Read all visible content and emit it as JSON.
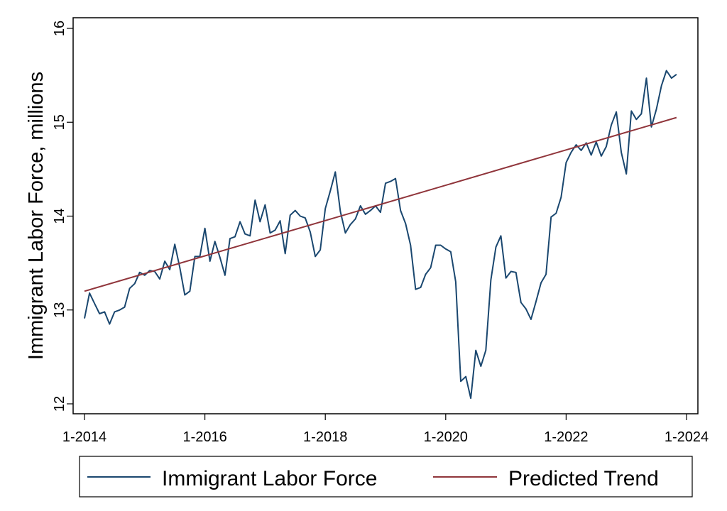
{
  "chart_data": {
    "type": "line",
    "title": "",
    "xlabel": "",
    "ylabel": "Immigrant Labor Force, millions",
    "ylim": [
      12,
      16
    ],
    "yticks": [
      "12",
      "13",
      "14",
      "15",
      "16"
    ],
    "xticks": [
      {
        "label": "1-2014",
        "date": "2014-01"
      },
      {
        "label": "1-2016",
        "date": "2016-01"
      },
      {
        "label": "1-2018",
        "date": "2018-01"
      },
      {
        "label": "1-2020",
        "date": "2020-01"
      },
      {
        "label": "1-2022",
        "date": "2022-01"
      },
      {
        "label": "1-2024",
        "date": "2024-01"
      }
    ],
    "grid": false,
    "legend_position": "bottom",
    "x": [
      "2014-01",
      "2014-02",
      "2014-03",
      "2014-04",
      "2014-05",
      "2014-06",
      "2014-07",
      "2014-08",
      "2014-09",
      "2014-10",
      "2014-11",
      "2014-12",
      "2015-01",
      "2015-02",
      "2015-03",
      "2015-04",
      "2015-05",
      "2015-06",
      "2015-07",
      "2015-08",
      "2015-09",
      "2015-10",
      "2015-11",
      "2015-12",
      "2016-01",
      "2016-02",
      "2016-03",
      "2016-04",
      "2016-05",
      "2016-06",
      "2016-07",
      "2016-08",
      "2016-09",
      "2016-10",
      "2016-11",
      "2016-12",
      "2017-01",
      "2017-02",
      "2017-03",
      "2017-04",
      "2017-05",
      "2017-06",
      "2017-07",
      "2017-08",
      "2017-09",
      "2017-10",
      "2017-11",
      "2017-12",
      "2018-01",
      "2018-02",
      "2018-03",
      "2018-04",
      "2018-05",
      "2018-06",
      "2018-07",
      "2018-08",
      "2018-09",
      "2018-10",
      "2018-11",
      "2018-12",
      "2019-01",
      "2019-02",
      "2019-03",
      "2019-04",
      "2019-05",
      "2019-06",
      "2019-07",
      "2019-08",
      "2019-09",
      "2019-10",
      "2019-11",
      "2019-12",
      "2020-01",
      "2020-02",
      "2020-03",
      "2020-04",
      "2020-05",
      "2020-06",
      "2020-07",
      "2020-08",
      "2020-09",
      "2020-10",
      "2020-11",
      "2020-12",
      "2021-01",
      "2021-02",
      "2021-03",
      "2021-04",
      "2021-05",
      "2021-06",
      "2021-07",
      "2021-08",
      "2021-09",
      "2021-10",
      "2021-11",
      "2021-12",
      "2022-01",
      "2022-02",
      "2022-03",
      "2022-04",
      "2022-05",
      "2022-06",
      "2022-07",
      "2022-08",
      "2022-09",
      "2022-10",
      "2022-11",
      "2022-12",
      "2023-01",
      "2023-02",
      "2023-03",
      "2023-04",
      "2023-05",
      "2023-06",
      "2023-07",
      "2023-08",
      "2023-09",
      "2023-10",
      "2023-11"
    ],
    "series": [
      {
        "name": "Immigrant Labor Force",
        "color": "#1a476f",
        "values": [
          12.91,
          13.18,
          13.07,
          12.96,
          12.98,
          12.85,
          12.98,
          13.0,
          13.03,
          13.23,
          13.28,
          13.4,
          13.37,
          13.42,
          13.41,
          13.33,
          13.52,
          13.43,
          13.7,
          13.45,
          13.16,
          13.2,
          13.57,
          13.57,
          13.87,
          13.52,
          13.73,
          13.56,
          13.37,
          13.76,
          13.78,
          13.94,
          13.81,
          13.79,
          14.17,
          13.94,
          14.12,
          13.82,
          13.85,
          13.95,
          13.6,
          14.01,
          14.06,
          14.0,
          13.98,
          13.83,
          13.57,
          13.64,
          14.08,
          14.27,
          14.47,
          14.05,
          13.82,
          13.91,
          13.97,
          14.11,
          14.02,
          14.06,
          14.11,
          14.04,
          14.35,
          14.37,
          14.4,
          14.06,
          13.92,
          13.69,
          13.22,
          13.24,
          13.38,
          13.45,
          13.69,
          13.69,
          13.65,
          13.62,
          13.3,
          12.24,
          12.29,
          12.06,
          12.57,
          12.4,
          12.57,
          13.32,
          13.67,
          13.79,
          13.34,
          13.41,
          13.4,
          13.08,
          13.01,
          12.9,
          13.09,
          13.29,
          13.38,
          13.99,
          14.03,
          14.2,
          14.57,
          14.68,
          14.76,
          14.7,
          14.78,
          14.65,
          14.79,
          14.64,
          14.74,
          14.97,
          15.11,
          14.68,
          14.45,
          15.12,
          15.03,
          15.09,
          15.47,
          14.95,
          15.14,
          15.39,
          15.55,
          15.47,
          15.51
        ]
      },
      {
        "name": "Predicted Trend",
        "color": "#90353b",
        "type": "linear",
        "endpoints": [
          {
            "date": "2014-01",
            "value": 13.2
          },
          {
            "date": "2023-11",
            "value": 15.05
          }
        ]
      }
    ]
  }
}
